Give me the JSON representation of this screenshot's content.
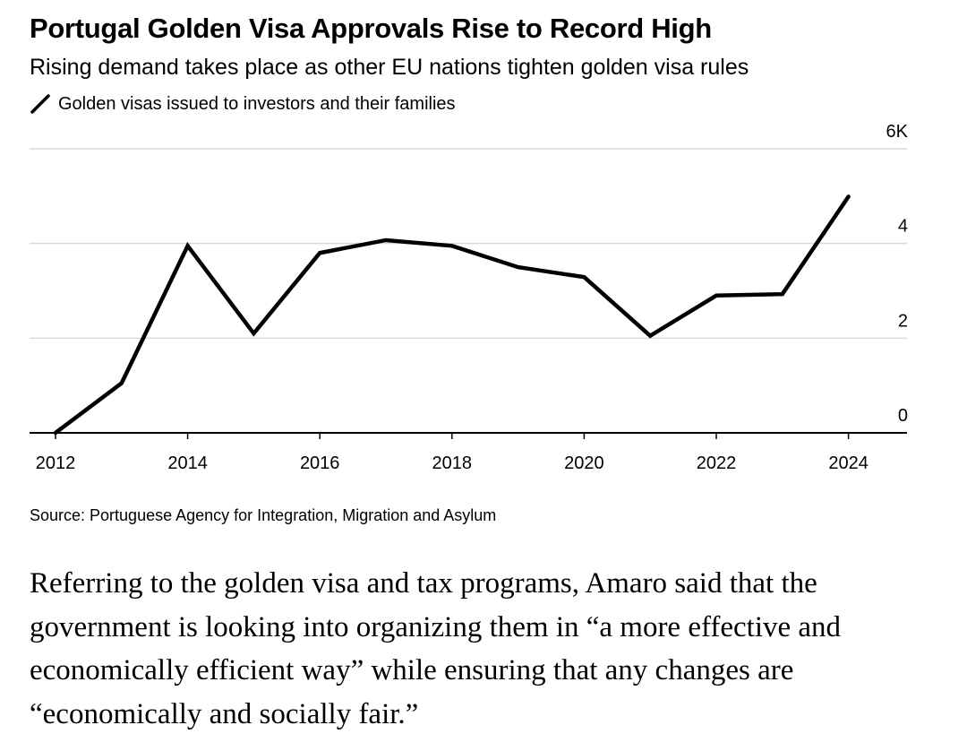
{
  "title": "Portugal Golden Visa Approvals Rise to Record High",
  "subtitle": "Rising demand takes place as other EU nations tighten golden visa rules",
  "source": "Source: Portuguese Agency for Integration, Migration and Asylum",
  "body_text": "Referring to the golden visa and tax programs, Amaro said that the government is looking into organizing them in “a more effective and economically efficient way” while ensuring that any changes are “economically and socially fair.”",
  "colors": {
    "line": "#000000",
    "grid": "#d9d9d9",
    "axis": "#000000"
  },
  "chart_data": {
    "type": "line",
    "title": "Portugal Golden Visa Approvals Rise to Record High",
    "subtitle": "Rising demand takes place as other EU nations tighten golden visa rules",
    "xlabel": "",
    "ylabel": "",
    "x_ticks": [
      "2012",
      "2014",
      "2016",
      "2018",
      "2020",
      "2022",
      "2024"
    ],
    "y_ticks": [
      "0",
      "2",
      "4",
      "6K"
    ],
    "ylim": [
      0,
      6000
    ],
    "xlim": [
      2012,
      2025
    ],
    "grid": "horizontal",
    "y_axis_position": "right",
    "legend_position": "top-left",
    "series": [
      {
        "name": "Golden visas issued to investors and their families",
        "x": [
          2012,
          2013,
          2014,
          2015,
          2016,
          2017,
          2018,
          2019,
          2020,
          2021,
          2022,
          2023,
          2024
        ],
        "values": [
          2,
          1050,
          3950,
          2100,
          3800,
          4070,
          3950,
          3500,
          3290,
          2050,
          2900,
          2930,
          4990
        ]
      }
    ]
  }
}
